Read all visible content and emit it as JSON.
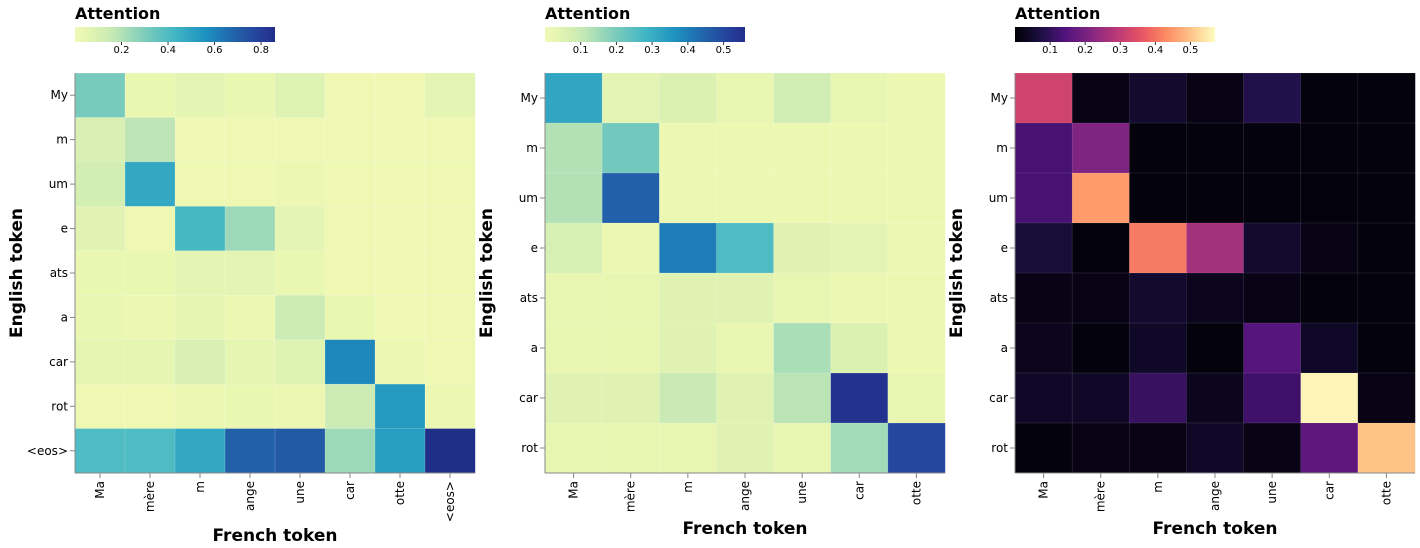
{
  "chart_data": [
    {
      "type": "heatmap",
      "legend_title": "Attention",
      "colormap": "YlGnBu",
      "xlabel": "French token",
      "ylabel": "English token",
      "x_categories": [
        "Ma",
        "mère",
        "m",
        "ange",
        "une",
        "car",
        "otte",
        "<eos>"
      ],
      "y_categories": [
        "My",
        "m",
        "um",
        "e",
        "ats",
        "a",
        "car",
        "rot",
        "<eos>"
      ],
      "color_range": [
        0.0,
        0.86
      ],
      "legend_ticks": [
        "0.2",
        "0.4",
        "0.6",
        "0.8"
      ],
      "legend_tick_values": [
        0.2,
        0.4,
        0.6,
        0.8
      ],
      "values": [
        [
          0.31,
          0.04,
          0.06,
          0.04,
          0.08,
          0.02,
          0.02,
          0.06
        ],
        [
          0.1,
          0.18,
          0.02,
          0.02,
          0.02,
          0.02,
          0.02,
          0.02
        ],
        [
          0.12,
          0.48,
          0.02,
          0.02,
          0.03,
          0.02,
          0.02,
          0.02
        ],
        [
          0.07,
          0.02,
          0.42,
          0.24,
          0.06,
          0.02,
          0.02,
          0.02
        ],
        [
          0.04,
          0.04,
          0.06,
          0.06,
          0.04,
          0.02,
          0.02,
          0.02
        ],
        [
          0.04,
          0.03,
          0.05,
          0.03,
          0.14,
          0.04,
          0.02,
          0.02
        ],
        [
          0.05,
          0.05,
          0.1,
          0.05,
          0.08,
          0.59,
          0.03,
          0.02
        ],
        [
          0.02,
          0.02,
          0.03,
          0.04,
          0.03,
          0.14,
          0.53,
          0.03
        ],
        [
          0.4,
          0.4,
          0.48,
          0.69,
          0.71,
          0.24,
          0.52,
          0.86
        ]
      ]
    },
    {
      "type": "heatmap",
      "legend_title": "Attention",
      "colormap": "YlGnBu",
      "xlabel": "French token",
      "ylabel": "English token",
      "x_categories": [
        "Ma",
        "mère",
        "m",
        "ange",
        "une",
        "car",
        "otte"
      ],
      "y_categories": [
        "My",
        "m",
        "um",
        "e",
        "ats",
        "a",
        "car",
        "rot"
      ],
      "color_range": [
        0.0,
        0.56
      ],
      "legend_ticks": [
        "0.1",
        "0.2",
        "0.3",
        "0.4",
        "0.5"
      ],
      "legend_tick_values": [
        0.1,
        0.2,
        0.3,
        0.4,
        0.5
      ],
      "values": [
        [
          0.32,
          0.04,
          0.06,
          0.03,
          0.08,
          0.03,
          0.02
        ],
        [
          0.13,
          0.21,
          0.02,
          0.02,
          0.02,
          0.02,
          0.02
        ],
        [
          0.13,
          0.45,
          0.02,
          0.02,
          0.02,
          0.02,
          0.02
        ],
        [
          0.07,
          0.02,
          0.4,
          0.26,
          0.05,
          0.04,
          0.02
        ],
        [
          0.03,
          0.03,
          0.05,
          0.05,
          0.03,
          0.02,
          0.02
        ],
        [
          0.03,
          0.03,
          0.05,
          0.03,
          0.14,
          0.06,
          0.02
        ],
        [
          0.05,
          0.05,
          0.1,
          0.05,
          0.12,
          0.55,
          0.03
        ],
        [
          0.03,
          0.03,
          0.03,
          0.05,
          0.03,
          0.15,
          0.5
        ]
      ]
    },
    {
      "type": "heatmap",
      "legend_title": "Attention",
      "colormap": "magma",
      "xlabel": "French token",
      "ylabel": "English token",
      "x_categories": [
        "Ma",
        "mère",
        "m",
        "ange",
        "une",
        "car",
        "otte"
      ],
      "y_categories": [
        "My",
        "m",
        "um",
        "e",
        "ats",
        "a",
        "car",
        "rot"
      ],
      "color_range": [
        0.0,
        0.57
      ],
      "legend_ticks": [
        "0.1",
        "0.2",
        "0.3",
        "0.4",
        "0.5"
      ],
      "legend_tick_values": [
        0.1,
        0.2,
        0.3,
        0.4,
        0.5
      ],
      "values": [
        [
          0.32,
          0.02,
          0.05,
          0.02,
          0.08,
          0.01,
          0.01
        ],
        [
          0.13,
          0.21,
          0.01,
          0.01,
          0.01,
          0.01,
          0.01
        ],
        [
          0.13,
          0.45,
          0.01,
          0.01,
          0.01,
          0.01,
          0.01
        ],
        [
          0.06,
          0.01,
          0.41,
          0.26,
          0.05,
          0.02,
          0.01
        ],
        [
          0.02,
          0.02,
          0.05,
          0.03,
          0.02,
          0.01,
          0.01
        ],
        [
          0.03,
          0.01,
          0.04,
          0.01,
          0.15,
          0.04,
          0.01
        ],
        [
          0.04,
          0.04,
          0.11,
          0.03,
          0.12,
          0.56,
          0.02
        ],
        [
          0.01,
          0.02,
          0.02,
          0.04,
          0.02,
          0.16,
          0.5
        ]
      ]
    }
  ]
}
